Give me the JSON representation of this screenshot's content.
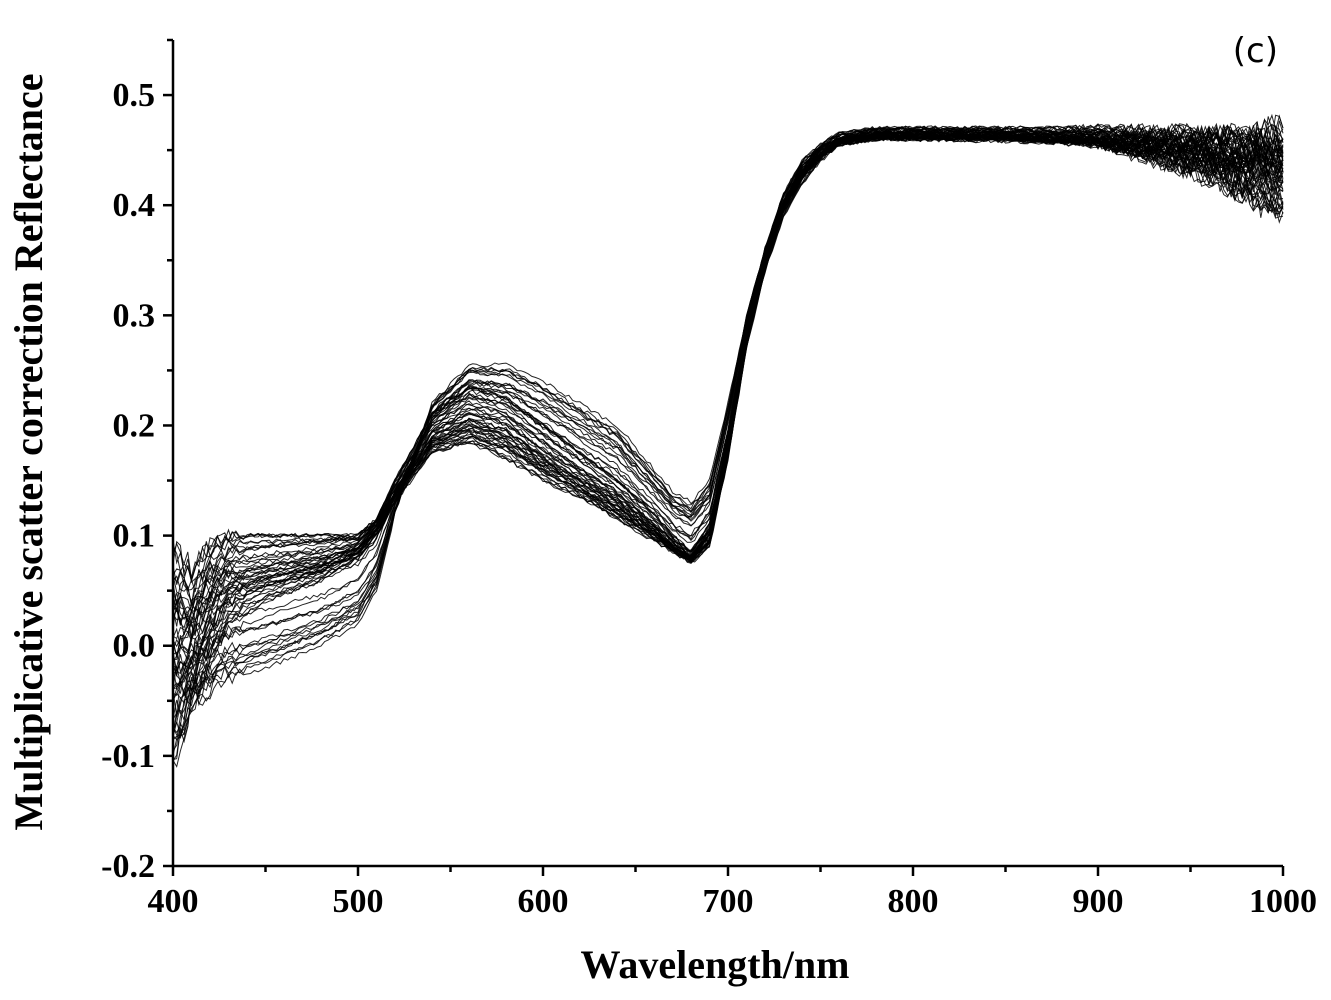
{
  "chart_data": {
    "type": "line",
    "title": "",
    "panel_label": "(c)",
    "xlabel": "Wavelength/nm",
    "ylabel": "Multiplicative scatter correction Reflectance",
    "xlim": [
      400,
      1000
    ],
    "ylim": [
      -0.2,
      0.55
    ],
    "x_ticks": [
      400,
      500,
      600,
      700,
      800,
      900,
      1000
    ],
    "x_tick_labels": [
      "400",
      "500",
      "600",
      "700",
      "800",
      "900",
      "1000"
    ],
    "x_minor_step": 50,
    "y_ticks": [
      -0.2,
      -0.1,
      0.0,
      0.1,
      0.2,
      0.3,
      0.4,
      0.5
    ],
    "y_tick_labels": [
      "-0.2",
      "-0.1",
      "0.0",
      "0.1",
      "0.2",
      "0.3",
      "0.4",
      "0.5"
    ],
    "y_minor_step": 0.05,
    "grid": false,
    "legend": "none",
    "line_color": "#000000",
    "series_count": 60,
    "x": [
      400,
      410,
      420,
      430,
      450,
      480,
      500,
      510,
      520,
      540,
      560,
      580,
      600,
      620,
      640,
      660,
      670,
      680,
      690,
      700,
      710,
      720,
      730,
      740,
      750,
      760,
      780,
      800,
      850,
      900,
      950,
      1000
    ],
    "series": [
      {
        "values": [
          0.03,
          0.02,
          0.05,
          0.065,
          0.072,
          0.08,
          0.09,
          0.11,
          0.14,
          0.19,
          0.205,
          0.195,
          0.17,
          0.15,
          0.13,
          0.105,
          0.09,
          0.08,
          0.1,
          0.18,
          0.28,
          0.35,
          0.4,
          0.43,
          0.45,
          0.46,
          0.465,
          0.465,
          0.465,
          0.462,
          0.455,
          0.445
        ]
      },
      {
        "values": [
          0.085,
          0.07,
          0.09,
          0.1,
          0.1,
          0.1,
          0.1,
          0.115,
          0.15,
          0.21,
          0.235,
          0.225,
          0.2,
          0.175,
          0.15,
          0.12,
          0.1,
          0.085,
          0.11,
          0.19,
          0.29,
          0.36,
          0.41,
          0.44,
          0.455,
          0.465,
          0.47,
          0.47,
          0.47,
          0.47,
          0.465,
          0.46
        ]
      },
      {
        "values": [
          -0.08,
          -0.06,
          -0.02,
          0.02,
          0.04,
          0.06,
          0.08,
          0.1,
          0.13,
          0.175,
          0.185,
          0.17,
          0.15,
          0.135,
          0.115,
          0.095,
          0.085,
          0.075,
          0.09,
          0.17,
          0.27,
          0.34,
          0.39,
          0.42,
          0.44,
          0.455,
          0.46,
          0.46,
          0.458,
          0.455,
          0.44,
          0.42
        ]
      },
      {
        "values": [
          -0.11,
          -0.05,
          -0.04,
          -0.03,
          -0.02,
          0.0,
          0.02,
          0.05,
          0.12,
          0.22,
          0.255,
          0.255,
          0.24,
          0.22,
          0.2,
          0.16,
          0.14,
          0.13,
          0.15,
          0.22,
          0.3,
          0.36,
          0.4,
          0.43,
          0.445,
          0.455,
          0.46,
          0.46,
          0.46,
          0.455,
          0.43,
          0.39
        ]
      },
      {
        "values": [
          0.05,
          0.045,
          0.07,
          0.085,
          0.09,
          0.095,
          0.098,
          0.112,
          0.145,
          0.2,
          0.22,
          0.21,
          0.185,
          0.16,
          0.14,
          0.11,
          0.095,
          0.08,
          0.105,
          0.185,
          0.285,
          0.355,
          0.405,
          0.435,
          0.452,
          0.462,
          0.468,
          0.468,
          0.467,
          0.466,
          0.46,
          0.47
        ]
      },
      {
        "values": [
          -0.02,
          -0.01,
          0.02,
          0.04,
          0.055,
          0.068,
          0.085,
          0.105,
          0.135,
          0.18,
          0.19,
          0.18,
          0.16,
          0.14,
          0.12,
          0.1,
          0.088,
          0.078,
          0.095,
          0.175,
          0.275,
          0.345,
          0.395,
          0.425,
          0.445,
          0.458,
          0.463,
          0.463,
          0.462,
          0.458,
          0.45,
          0.43
        ]
      }
    ]
  }
}
